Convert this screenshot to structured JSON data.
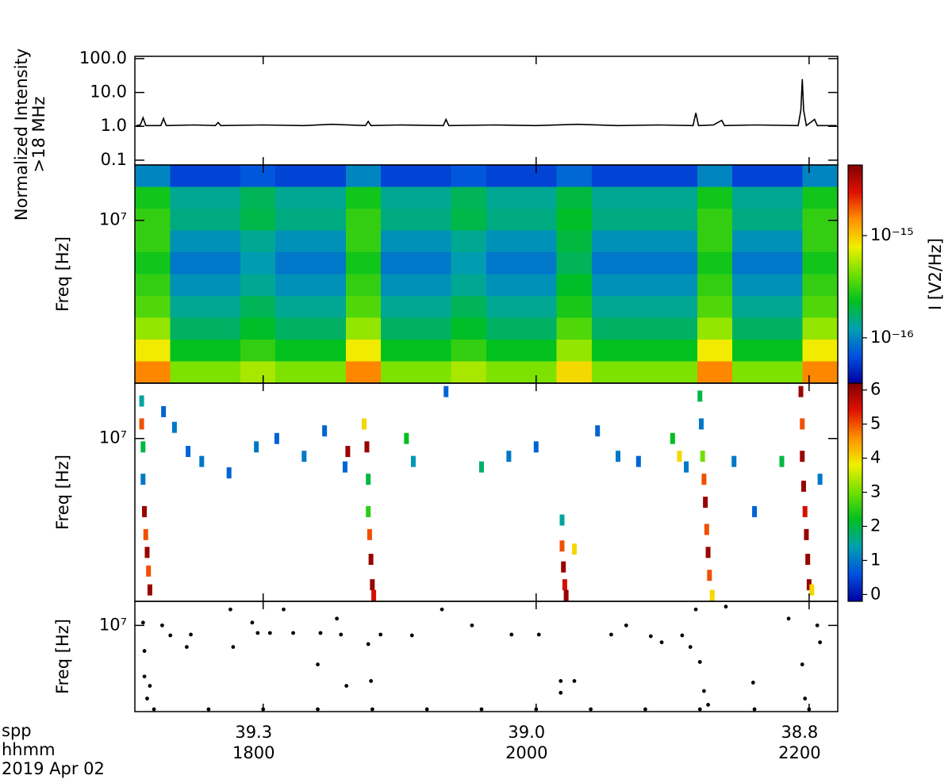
{
  "chart_data": [
    {
      "type": "line",
      "ylabel": [
        "Normalized Intensity",
        ">18 MHz"
      ],
      "ylog": true,
      "color": "#000000",
      "xlim": [
        17.06,
        22.21
      ],
      "ylim": [
        0.072,
        117
      ],
      "yticks": [
        {
          "value": 0.1,
          "label": "0.1"
        },
        {
          "value": 1,
          "label": "1.0"
        },
        {
          "value": 10,
          "label": "10.0"
        },
        {
          "value": 100,
          "label": "100.0"
        }
      ],
      "x": [
        17.07,
        17.1,
        17.12,
        17.14,
        17.25,
        17.27,
        17.29,
        17.5,
        17.65,
        17.67,
        17.69,
        18.0,
        18.3,
        18.5,
        18.75,
        18.77,
        18.79,
        19.0,
        19.32,
        19.34,
        19.36,
        19.7,
        20.0,
        20.3,
        20.6,
        20.9,
        21.15,
        21.17,
        21.19,
        21.3,
        21.36,
        21.38,
        21.6,
        21.92,
        21.94,
        21.95,
        21.96,
        21.98,
        22.04,
        22.06,
        22.2
      ],
      "values": [
        1.05,
        1.1,
        1.8,
        1.05,
        1.05,
        1.7,
        1.05,
        1.1,
        1.05,
        1.3,
        1.05,
        1.1,
        1.05,
        1.15,
        1.05,
        1.4,
        1.05,
        1.1,
        1.05,
        1.6,
        1.05,
        1.1,
        1.05,
        1.15,
        1.05,
        1.1,
        1.05,
        2.5,
        1.05,
        1.1,
        1.5,
        1.05,
        1.1,
        1.05,
        3,
        25,
        3,
        1.05,
        1.6,
        1.05,
        1.05
      ]
    },
    {
      "type": "heatmap",
      "ylabel": "Freq [Hz]",
      "ylog": true,
      "xlim": [
        17.06,
        22.21
      ],
      "ylim": [
        1300000,
        20000000
      ],
      "yticks": [
        {
          "value": 10000000,
          "label": "10⁷"
        }
      ],
      "clim": [
        3.6e-17,
        4.9e-15
      ],
      "clog": true,
      "clabel": "I [V2/Hz]",
      "cticks": [
        {
          "value": 1e-15,
          "label": "10⁻¹⁵"
        },
        {
          "value": 1e-16,
          "label": "10⁻¹⁶"
        }
      ],
      "colormap": [
        "#0000a0",
        "#0050e0",
        "#00a0b0",
        "#00c020",
        "#70e000",
        "#f0f000",
        "#ff9000",
        "#e01000",
        "#800000"
      ],
      "z": [
        [
          1e-16,
          6e-17,
          6e-17,
          7e-17,
          6e-17,
          6e-17,
          1e-16,
          6e-17,
          6e-17,
          7e-17,
          6e-17,
          6e-17,
          8e-17,
          6e-17,
          6e-17,
          6e-17,
          1e-16,
          6e-17,
          6e-17,
          1e-16
        ],
        [
          2.5e-16,
          1.4e-16,
          1.4e-16,
          1.8e-16,
          1.4e-16,
          1.4e-16,
          2.5e-16,
          1.4e-16,
          1.4e-16,
          1.8e-16,
          1.4e-16,
          1.4e-16,
          2e-16,
          1.4e-16,
          1.4e-16,
          1.4e-16,
          2.5e-16,
          1.4e-16,
          1.4e-16,
          2.5e-16
        ],
        [
          3e-16,
          1.5e-16,
          1.5e-16,
          1.9e-16,
          1.5e-16,
          1.5e-16,
          3e-16,
          1.5e-16,
          1.5e-16,
          1.9e-16,
          1.5e-16,
          1.5e-16,
          2.2e-16,
          1.5e-16,
          1.5e-16,
          1.5e-16,
          3e-16,
          1.5e-16,
          1.5e-16,
          3e-16
        ],
        [
          3e-16,
          1.1e-16,
          1.1e-16,
          1.4e-16,
          1.1e-16,
          1.1e-16,
          3e-16,
          1.1e-16,
          1.1e-16,
          1.4e-16,
          1.1e-16,
          1.1e-16,
          2e-16,
          1.1e-16,
          1.1e-16,
          1.1e-16,
          3e-16,
          1.1e-16,
          1.1e-16,
          3e-16
        ],
        [
          2.5e-16,
          9e-17,
          9e-17,
          1.2e-16,
          9e-17,
          9e-17,
          2.5e-16,
          9e-17,
          9e-17,
          1.2e-16,
          9e-17,
          9e-17,
          1.8e-16,
          9e-17,
          9e-17,
          9e-17,
          2.5e-16,
          9e-17,
          9e-17,
          2.5e-16
        ],
        [
          3e-16,
          1.1e-16,
          1.1e-16,
          1.4e-16,
          1.1e-16,
          1.1e-16,
          3e-16,
          1.1e-16,
          1.1e-16,
          1.4e-16,
          1.1e-16,
          1.1e-16,
          2.2e-16,
          1.1e-16,
          1.1e-16,
          1.1e-16,
          3e-16,
          1.1e-16,
          1.1e-16,
          3e-16
        ],
        [
          3.5e-16,
          1.4e-16,
          1.4e-16,
          1.8e-16,
          1.4e-16,
          1.4e-16,
          3.5e-16,
          1.4e-16,
          1.4e-16,
          1.8e-16,
          1.4e-16,
          1.4e-16,
          2.6e-16,
          1.4e-16,
          1.4e-16,
          1.4e-16,
          3.5e-16,
          1.4e-16,
          1.4e-16,
          3.5e-16
        ],
        [
          5e-16,
          1.7e-16,
          1.7e-16,
          2.2e-16,
          1.7e-16,
          1.7e-16,
          5e-16,
          1.7e-16,
          1.7e-16,
          2.2e-16,
          1.7e-16,
          1.7e-16,
          3.5e-16,
          1.7e-16,
          1.7e-16,
          1.7e-16,
          5e-16,
          1.7e-16,
          1.7e-16,
          5e-16
        ],
        [
          8e-16,
          2.3e-16,
          2.3e-16,
          3e-16,
          2.3e-16,
          2.3e-16,
          8e-16,
          2.3e-16,
          2.3e-16,
          3e-16,
          2.3e-16,
          2.3e-16,
          5e-16,
          2.3e-16,
          2.3e-16,
          2.3e-16,
          8e-16,
          2.3e-16,
          2.3e-16,
          8e-16
        ],
        [
          1.5e-15,
          4.5e-16,
          4.5e-16,
          5.5e-16,
          4.5e-16,
          4.5e-16,
          1.5e-15,
          4.5e-16,
          4.5e-16,
          5.5e-16,
          4.5e-16,
          4.5e-16,
          9e-16,
          4.5e-16,
          4.5e-16,
          4.5e-16,
          1.5e-15,
          4.5e-16,
          4.5e-16,
          1.5e-15
        ]
      ]
    },
    {
      "type": "tiles",
      "ylabel": "Freq [Hz]",
      "ylog": true,
      "xlim": [
        17.06,
        22.21
      ],
      "ylim": [
        1300000,
        20000000
      ],
      "yticks": [
        {
          "value": 10000000,
          "label": "10⁷"
        }
      ],
      "clim": [
        -0.2,
        6.2
      ],
      "clog": false,
      "cticks": [
        0,
        1,
        2,
        3,
        4,
        5,
        6
      ],
      "colormap": [
        "#0000a0",
        "#0050e0",
        "#00a0b0",
        "#00c020",
        "#70e000",
        "#f0f000",
        "#ff9000",
        "#e01000",
        "#800000"
      ],
      "x": [
        17.11,
        17.11,
        17.12,
        17.12,
        17.13,
        17.14,
        17.15,
        17.16,
        17.17,
        18.74,
        18.76,
        18.77,
        18.77,
        18.78,
        18.79,
        18.8,
        18.81,
        20.19,
        20.19,
        20.2,
        20.21,
        20.22,
        20.28,
        21.2,
        21.21,
        21.22,
        21.23,
        21.24,
        21.25,
        21.26,
        21.27,
        21.29,
        21.94,
        21.95,
        21.95,
        21.96,
        21.97,
        21.98,
        21.99,
        22.0,
        22.02,
        17.27,
        17.35,
        17.45,
        17.55,
        17.75,
        17.95,
        18.1,
        18.3,
        18.45,
        18.62,
        18.6,
        19.1,
        19.05,
        19.34,
        19.6,
        19.8,
        20.0,
        20.45,
        20.6,
        20.75,
        21.0,
        21.05,
        21.1,
        21.45,
        21.6,
        21.8,
        22.08
      ],
      "y": [
        16000000,
        12000000,
        9000000,
        6000000,
        4000000,
        3000000,
        2400000,
        1900000,
        1500000,
        12000000,
        9000000,
        6000000,
        4000000,
        3000000,
        2200000,
        1600000,
        1400000,
        3600000,
        2600000,
        2000000,
        1600000,
        1400000,
        2500000,
        17000000,
        12000000,
        8000000,
        6000000,
        4500000,
        3200000,
        2400000,
        1800000,
        1400000,
        18000000,
        12000000,
        8000000,
        5500000,
        4000000,
        3000000,
        2200000,
        1600000,
        1500000,
        14000000,
        11500000,
        8500000,
        7500000,
        6500000,
        9000000,
        10000000,
        8000000,
        11000000,
        8500000,
        7000000,
        7500000,
        10000000,
        18000000,
        7000000,
        8000000,
        9000000,
        11000000,
        8000000,
        7500000,
        10000000,
        8000000,
        7000000,
        7500000,
        4000000,
        7500000,
        6000000
      ],
      "values": [
        1.5,
        5,
        2,
        1,
        6,
        5,
        6,
        5,
        6,
        4,
        6,
        2,
        2.5,
        5,
        6,
        6,
        5.5,
        1.5,
        5,
        6,
        5.5,
        6,
        4,
        2,
        1,
        3,
        5,
        6,
        5,
        6,
        5,
        4,
        6,
        5,
        6,
        6,
        5.5,
        6,
        6,
        6,
        4,
        0.8,
        1,
        0.8,
        1,
        0.8,
        1,
        0.8,
        1,
        0.8,
        6,
        0.8,
        1.3,
        2.2,
        0.8,
        1.8,
        1,
        0.8,
        0.8,
        1,
        0.8,
        2.2,
        4,
        1,
        1,
        0.8,
        2,
        1
      ]
    },
    {
      "type": "scatter",
      "ylabel": "Freq [Hz]",
      "ylog": true,
      "color": "#000000",
      "xlim": [
        17.06,
        22.21
      ],
      "ylim": [
        3000000,
        14000000
      ],
      "yticks": [
        {
          "value": 10000000,
          "label": "10⁷"
        }
      ],
      "xticks": [
        {
          "value": 18,
          "label": "1800"
        },
        {
          "value": 20,
          "label": "2000"
        },
        {
          "value": 22,
          "label": "2200"
        }
      ],
      "xticks_second_row": [
        "39.3",
        "39.0",
        "38.8"
      ],
      "x_title": [
        "spp",
        "hhmm",
        "2019 Apr 02"
      ],
      "x": [
        17.12,
        17.13,
        17.13,
        17.17,
        17.15,
        17.26,
        17.32,
        17.44,
        17.47,
        17.76,
        17.78,
        17.92,
        17.96,
        18.05,
        18.15,
        18.22,
        18.4,
        18.42,
        18.54,
        18.57,
        18.61,
        18.77,
        18.79,
        18.86,
        19.09,
        19.31,
        19.53,
        19.82,
        20.02,
        20.18,
        20.18,
        20.28,
        20.55,
        20.66,
        20.84,
        20.92,
        21.07,
        21.13,
        21.17,
        21.2,
        21.23,
        21.26,
        21.39,
        21.59,
        21.85,
        21.95,
        21.97,
        22.08,
        22.06,
        17.2,
        17.6,
        18.0,
        18.4,
        18.8,
        19.2,
        19.6,
        20.0,
        20.4,
        20.8,
        21.2,
        21.6,
        22.0
      ],
      "y": [
        10400000,
        7000000,
        4900000,
        4300000,
        3600000,
        10000000,
        8700000,
        7400000,
        8800000,
        12500000,
        7400000,
        10400000,
        9000000,
        9000000,
        12500000,
        9000000,
        5800000,
        9000000,
        11000000,
        8800000,
        4300000,
        7700000,
        4600000,
        8800000,
        8700000,
        12500000,
        10000000,
        8800000,
        8800000,
        4600000,
        3900000,
        4600000,
        8800000,
        10000000,
        8600000,
        7900000,
        8700000,
        7400000,
        12500000,
        6000000,
        4000000,
        3300000,
        13000000,
        4500000,
        11000000,
        5800000,
        3600000,
        7900000,
        10000000,
        3100000,
        3100000,
        3100000,
        3100000,
        3100000,
        3100000,
        3100000,
        3100000,
        3100000,
        3100000,
        3100000,
        3100000,
        3100000
      ]
    }
  ]
}
